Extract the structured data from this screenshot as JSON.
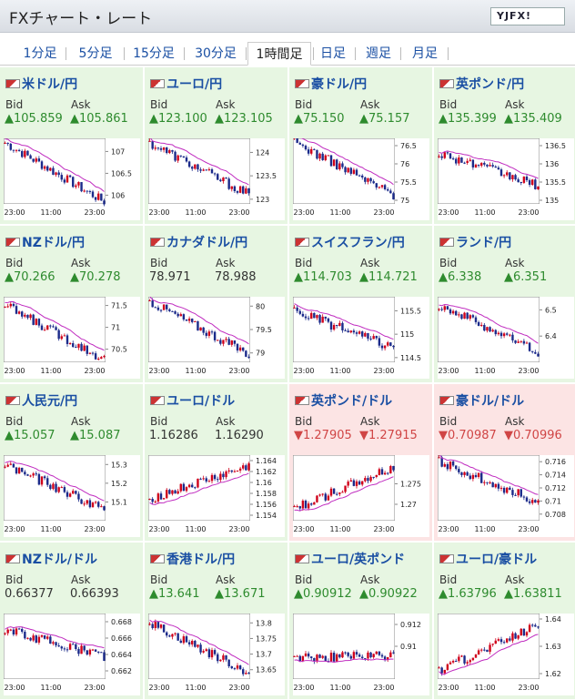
{
  "app": {
    "title": "FXチャート・レート",
    "logo": "YJFX!"
  },
  "tabs": [
    "1分足",
    "5分足",
    "15分足",
    "30分足",
    "1時間足",
    "日足",
    "週足",
    "月足"
  ],
  "active_tab": "1時間足",
  "labels": {
    "bid": "Bid",
    "ask": "Ask"
  },
  "x_ticks": [
    "23:00",
    "11:00",
    "23:00"
  ],
  "pairs": [
    {
      "name": "米ドル/円",
      "trend": "up",
      "bid": "▲105.859",
      "ask": "▲105.861",
      "yticks": [
        "107",
        "106.5",
        "106"
      ],
      "ylim": [
        105.8,
        107.3
      ],
      "start": 107.2,
      "end": 105.85
    },
    {
      "name": "ユーロ/円",
      "trend": "up",
      "bid": "▲123.100",
      "ask": "▲123.105",
      "yticks": [
        "124",
        "123.5",
        "123"
      ],
      "ylim": [
        122.9,
        124.3
      ],
      "start": 124.2,
      "end": 123.1
    },
    {
      "name": "豪ドル/円",
      "trend": "up",
      "bid": "▲75.150",
      "ask": "▲75.157",
      "yticks": [
        "76.5",
        "76",
        "75.5",
        "75"
      ],
      "ylim": [
        74.9,
        76.7
      ],
      "start": 76.6,
      "end": 75.15
    },
    {
      "name": "英ポンド/円",
      "trend": "up",
      "bid": "▲135.399",
      "ask": "▲135.409",
      "yticks": [
        "136.5",
        "136",
        "135.5",
        "135"
      ],
      "ylim": [
        134.9,
        136.7
      ],
      "start": 136.3,
      "end": 135.4
    },
    {
      "name": "NZドル/円",
      "trend": "up",
      "bid": "▲70.266",
      "ask": "▲70.278",
      "yticks": [
        "71.5",
        "71",
        "70.5"
      ],
      "ylim": [
        70.2,
        71.7
      ],
      "start": 71.5,
      "end": 70.27
    },
    {
      "name": "カナダドル/円",
      "trend": "flat",
      "bid": "78.971",
      "ask": "78.988",
      "yticks": [
        "80",
        "79.5",
        "79"
      ],
      "ylim": [
        78.8,
        80.2
      ],
      "start": 80.1,
      "end": 78.97
    },
    {
      "name": "スイスフラン/円",
      "trend": "up",
      "bid": "▲114.703",
      "ask": "▲114.721",
      "yticks": [
        "115.5",
        "115",
        "114.5"
      ],
      "ylim": [
        114.4,
        115.8
      ],
      "start": 115.5,
      "end": 114.7
    },
    {
      "name": "ランド/円",
      "trend": "up",
      "bid": "▲6.338",
      "ask": "▲6.351",
      "yticks": [
        "6.5",
        "6.4"
      ],
      "ylim": [
        6.3,
        6.55
      ],
      "start": 6.52,
      "end": 6.34
    },
    {
      "name": "人民元/円",
      "trend": "up",
      "bid": "▲15.057",
      "ask": "▲15.087",
      "yticks": [
        "15.3",
        "15.2",
        "15.1"
      ],
      "ylim": [
        15.0,
        15.35
      ],
      "start": 15.3,
      "end": 15.06
    },
    {
      "name": "ユーロ/ドル",
      "trend": "flat",
      "bid": "1.16286",
      "ask": "1.16290",
      "yticks": [
        "1.164",
        "1.162",
        "1.16",
        "1.158",
        "1.156",
        "1.154"
      ],
      "ylim": [
        1.153,
        1.165
      ],
      "start": 1.157,
      "end": 1.1629
    },
    {
      "name": "英ポンド/ドル",
      "trend": "down",
      "bid": "▼1.27905",
      "ask": "▼1.27915",
      "yticks": [
        "1.275",
        "1.27"
      ],
      "ylim": [
        1.266,
        1.282
      ],
      "start": 1.269,
      "end": 1.279
    },
    {
      "name": "豪ドル/ドル",
      "trend": "down",
      "bid": "▼0.70987",
      "ask": "▼0.70996",
      "yticks": [
        "0.716",
        "0.714",
        "0.712",
        "0.71",
        "0.708"
      ],
      "ylim": [
        0.707,
        0.717
      ],
      "start": 0.716,
      "end": 0.7099
    },
    {
      "name": "NZドル/ドル",
      "trend": "flat",
      "bid": "0.66377",
      "ask": "0.66393",
      "yticks": [
        "0.668",
        "0.666",
        "0.664",
        "0.662"
      ],
      "ylim": [
        0.661,
        0.669
      ],
      "start": 0.667,
      "end": 0.6638
    },
    {
      "name": "香港ドル/円",
      "trend": "up",
      "bid": "▲13.641",
      "ask": "▲13.671",
      "yticks": [
        "13.8",
        "13.75",
        "13.7",
        "13.65"
      ],
      "ylim": [
        13.62,
        13.83
      ],
      "start": 13.8,
      "end": 13.64
    },
    {
      "name": "ユーロ/英ポンド",
      "trend": "up",
      "bid": "▲0.90912",
      "ask": "▲0.90922",
      "yticks": [
        "0.912",
        "0.91"
      ],
      "ylim": [
        0.907,
        0.913
      ],
      "start": 0.909,
      "end": 0.9091
    },
    {
      "name": "ユーロ/豪ドル",
      "trend": "up",
      "bid": "▲1.63796",
      "ask": "▲1.63811",
      "yticks": [
        "1.64",
        "1.63",
        "1.62"
      ],
      "ylim": [
        1.618,
        1.642
      ],
      "start": 1.621,
      "end": 1.638
    }
  ],
  "colors": {
    "up_bg": "#e7f6e2",
    "down_bg": "#fce4e4",
    "candle_up": "#d0021b",
    "candle_down": "#1b2a8a",
    "ma": "#c02cc0",
    "ma2": "#2a9a2a"
  }
}
